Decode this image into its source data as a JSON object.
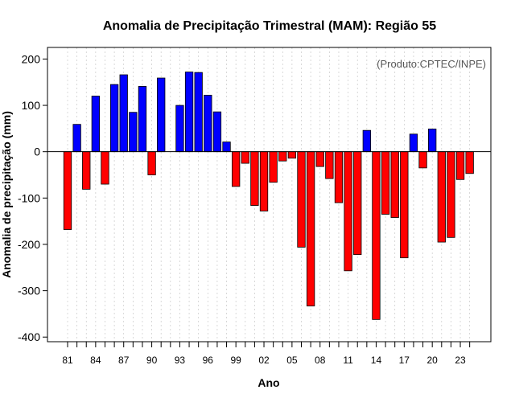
{
  "chart_data": {
    "type": "bar",
    "title": "Anomalia de Precipitação Trimestral (MAM): Região 55",
    "xlabel": "Ano",
    "ylabel": "Anomalia de precipitação (mm)",
    "annotation": "(Produto:CPTEC/INPE)",
    "ylim": [
      -410,
      225
    ],
    "yticks": [
      200,
      100,
      0,
      -100,
      -200,
      -300,
      -400
    ],
    "xtick_labels": [
      {
        "index": 0,
        "label": "81"
      },
      {
        "index": 3,
        "label": "84"
      },
      {
        "index": 6,
        "label": "87"
      },
      {
        "index": 9,
        "label": "90"
      },
      {
        "index": 12,
        "label": "93"
      },
      {
        "index": 15,
        "label": "96"
      },
      {
        "index": 18,
        "label": "99"
      },
      {
        "index": 21,
        "label": "02"
      },
      {
        "index": 24,
        "label": "05"
      },
      {
        "index": 27,
        "label": "08"
      },
      {
        "index": 30,
        "label": "11"
      },
      {
        "index": 33,
        "label": "14"
      },
      {
        "index": 36,
        "label": "17"
      },
      {
        "index": 39,
        "label": "20"
      },
      {
        "index": 42,
        "label": "23"
      }
    ],
    "years": [
      1981,
      1982,
      1983,
      1984,
      1985,
      1986,
      1987,
      1988,
      1989,
      1990,
      1991,
      1992,
      1993,
      1994,
      1995,
      1996,
      1997,
      1998,
      1999,
      2000,
      2001,
      2002,
      2003,
      2004,
      2005,
      2006,
      2007,
      2008,
      2009,
      2010,
      2011,
      2012,
      2013,
      2014,
      2015,
      2016,
      2017,
      2018,
      2019,
      2020,
      2021,
      2022,
      2023,
      2024
    ],
    "values": [
      -168,
      59,
      -81,
      120,
      -70,
      145,
      166,
      85,
      141,
      -50,
      159,
      0,
      100,
      172,
      171,
      122,
      86,
      21,
      -75,
      -25,
      -116,
      -128,
      -66,
      -20,
      -14,
      -206,
      -333,
      -32,
      -58,
      -110,
      -257,
      -222,
      46,
      -362,
      -135,
      -142,
      -229,
      38,
      -35,
      49,
      -195,
      -185,
      -60,
      -47
    ],
    "colors": {
      "positive": "#0000ff",
      "negative": "#ff0000",
      "outline": "#000000",
      "grid": "#c8c8c8"
    }
  }
}
